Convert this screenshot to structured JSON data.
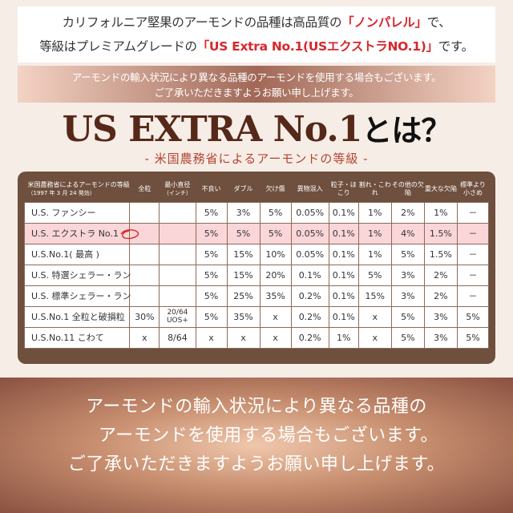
{
  "intro": {
    "line1_pre": "カリフォルニア堅果のアーモンドの品種は高品質の",
    "line1_hl": "「ノンパレル」",
    "line1_post": "で、",
    "line2_pre": "等級はプレミアムグレードの",
    "line2_hl": "「US Extra No.1(USエクストラNO.1)」",
    "line2_post": "です。"
  },
  "notice_small": {
    "line1": "アーモンドの輸入状況により異なる品種のアーモンドを使用する場合もございます。",
    "line2": "ご了承いただきますようお願い申し上げます。"
  },
  "headline": {
    "main": "US EXTRA No.1",
    "toha": "とは？"
  },
  "subline": "- 米国農務省によるアーモンドの等級 -",
  "table": {
    "header": {
      "grade": "米国農務省によるアーモンドの等級",
      "grade_sub": "（1997 年 3 月 24 発効）",
      "cols": [
        "全粒",
        "最小直径",
        "不良い",
        "ダブル",
        "欠け傷",
        "異物混入",
        "粒子・ほこり",
        "割れ・こわれ",
        "その他の欠陥",
        "重大な欠陥",
        "標準より小さめ"
      ],
      "col2_sub": "（インチ）"
    },
    "rows": [
      [
        "U.S. ファンシー",
        "",
        "",
        "5%",
        "3%",
        "5%",
        "0.05%",
        "0.1%",
        "1%",
        "2%",
        "1%",
        "－"
      ],
      [
        "U.S. エクストラ No.1",
        "",
        "",
        "5%",
        "5%",
        "5%",
        "0.05%",
        "0.1%",
        "1%",
        "4%",
        "1.5%",
        "－"
      ],
      [
        "U.S.No.1( 最高 )",
        "",
        "",
        "5%",
        "15%",
        "10%",
        "0.05%",
        "0.1%",
        "1%",
        "5%",
        "1.5%",
        "－"
      ],
      [
        "U.S. 特選シェラー・ラン",
        "",
        "",
        "5%",
        "15%",
        "20%",
        "0.1%",
        "0.1%",
        "5%",
        "3%",
        "2%",
        "－"
      ],
      [
        "U.S. 標準シェラー・ラン",
        "",
        "",
        "5%",
        "25%",
        "35%",
        "0.2%",
        "0.1%",
        "15%",
        "3%",
        "2%",
        "－"
      ],
      [
        "U.S.No.1 全粒と破損粒",
        "30%",
        "20/64 UOS+",
        "5%",
        "35%",
        "x",
        "0.2%",
        "0.1%",
        "x",
        "5%",
        "3%",
        "5%"
      ],
      [
        "U.S.No.11 こわて",
        "x",
        "8/64",
        "x",
        "x",
        "x",
        "0.2%",
        "1%",
        "x",
        "5%",
        "3%",
        "5%"
      ]
    ]
  },
  "bottom_notice": {
    "line1": "アーモンドの輸入状況により異なる品種の",
    "line2": "アーモンドを使用する場合もございます。",
    "line3": "ご了承いただきますようお願い申し上げます。"
  }
}
